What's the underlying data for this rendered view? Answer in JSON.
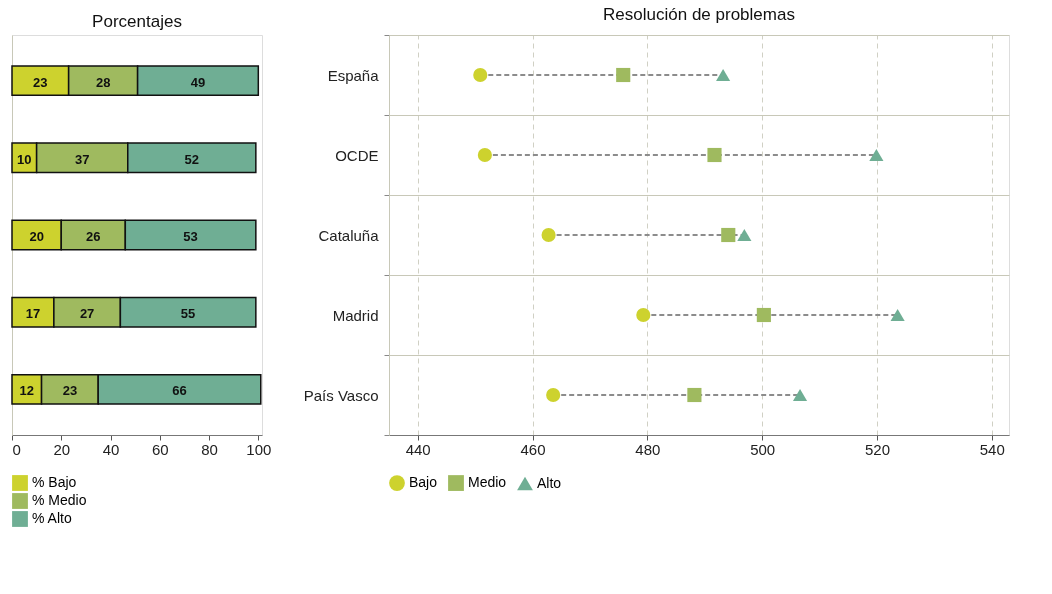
{
  "chart_data": [
    {
      "type": "bar",
      "title": "Porcentajes",
      "orientation": "horizontal",
      "stacked": true,
      "data_labels": true,
      "tick_labels": "x",
      "legend": "bottom",
      "categories": [
        null,
        null,
        null,
        null,
        null
      ],
      "xlim": [
        0,
        101.5
      ],
      "xticks": [
        0,
        20,
        40,
        60,
        80,
        100
      ],
      "series": [
        {
          "name": "% Bajo",
          "color": "#cdd22e",
          "values": [
            23,
            10,
            20,
            17,
            12
          ]
        },
        {
          "name": "% Medio",
          "color": "#9fba5f",
          "values": [
            28,
            37,
            26,
            27,
            23
          ]
        },
        {
          "name": "% Alto",
          "color": "#6fae94",
          "values": [
            49,
            52,
            53,
            55,
            66
          ]
        }
      ]
    },
    {
      "type": "scatter",
      "title": "Resolución de problemas",
      "orientation": "horizontal",
      "grid": true,
      "legend": "bottom",
      "line_style": "dashed",
      "categories": [
        "España",
        "OCDE",
        "Cataluña",
        "Madrid",
        "País Vasco"
      ],
      "xlim": [
        435,
        543
      ],
      "xticks": [
        440,
        460,
        480,
        500,
        520,
        540
      ],
      "series": [
        {
          "name": "Bajo",
          "color": "#cdd22e",
          "marker": "circle",
          "values": [
            450.9,
            451.7,
            462.8,
            479.3,
            463.6
          ]
        },
        {
          "name": "Medio",
          "color": "#9fba5f",
          "marker": "square",
          "values": [
            475.8,
            491.7,
            494.1,
            500.3,
            488.2
          ]
        },
        {
          "name": "Alto",
          "color": "#6fae94",
          "marker": "triangle",
          "values": [
            493.2,
            519.9,
            496.9,
            523.6,
            506.6
          ]
        }
      ]
    }
  ]
}
